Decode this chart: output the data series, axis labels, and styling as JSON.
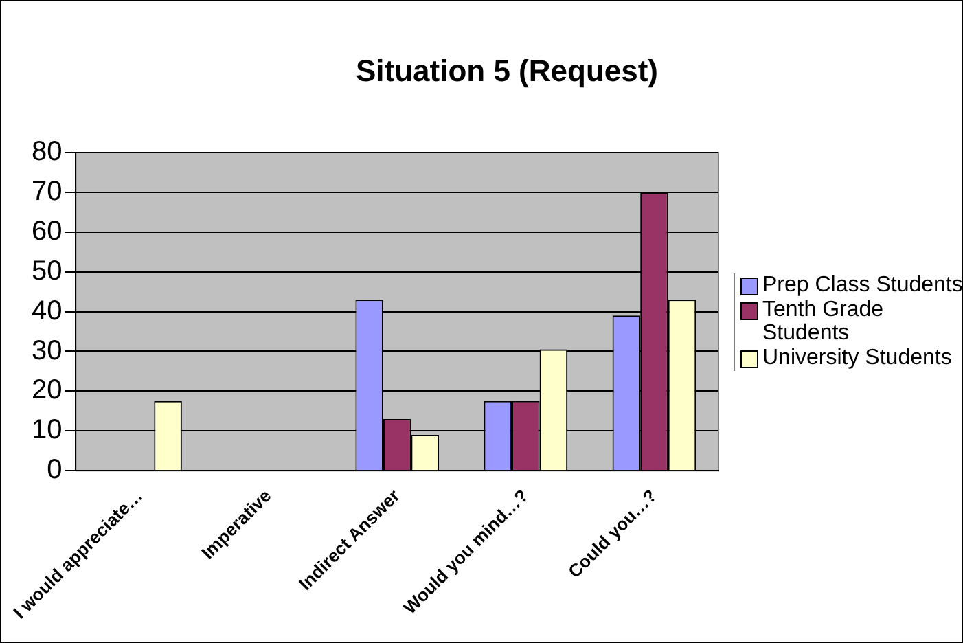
{
  "chart_data": {
    "type": "bar",
    "title": "Situation 5 (Request)",
    "categories": [
      "I would appreciate…",
      "Imperative",
      "Indirect Answer",
      "Would you mind…?",
      "Could you…?"
    ],
    "series": [
      {
        "name": "Prep Class Students",
        "color": "#9999ff",
        "values": [
          0,
          0,
          43,
          17.5,
          39
        ]
      },
      {
        "name": "Tenth Grade Students",
        "color": "#993366",
        "values": [
          0,
          0,
          13,
          17.5,
          70
        ]
      },
      {
        "name": "University Students",
        "color": "#ffffcc",
        "values": [
          17.5,
          0,
          9,
          30.5,
          43
        ]
      }
    ],
    "ylim": [
      0,
      80
    ],
    "yticks": [
      0,
      10,
      20,
      30,
      40,
      50,
      60,
      70,
      80
    ],
    "grid": "y",
    "legend": "right"
  }
}
